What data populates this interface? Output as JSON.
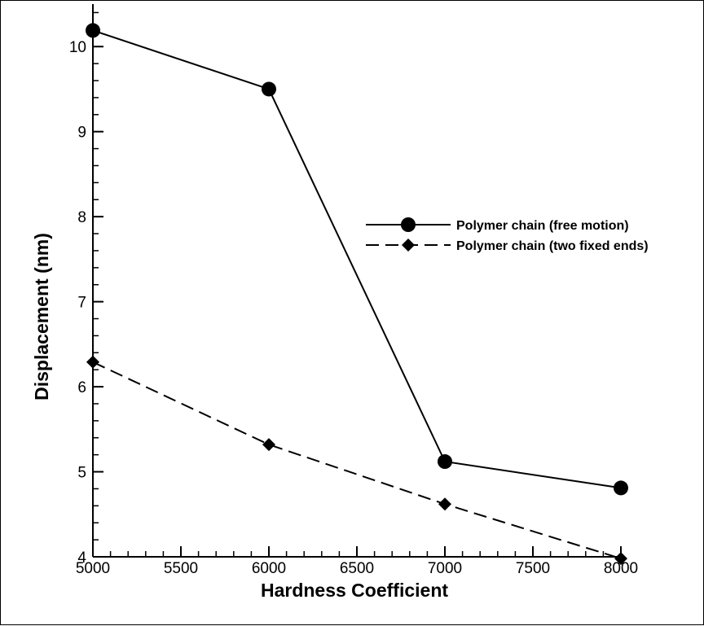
{
  "chart_data": {
    "type": "line",
    "xlabel": "Hardness Coefficient",
    "ylabel": "Displacement (nm)",
    "xlim": [
      5000,
      8000
    ],
    "ylim": [
      4,
      10.5
    ],
    "xticks": [
      5000,
      5500,
      6000,
      6500,
      7000,
      7500,
      8000
    ],
    "yticks": [
      4,
      5,
      6,
      7,
      8,
      9,
      10
    ],
    "legend_position": "right-middle",
    "series": [
      {
        "name": "Polymer chain (free motion)",
        "x": [
          5000,
          6000,
          7000,
          8000
        ],
        "y": [
          10.19,
          9.5,
          5.12,
          4.81
        ],
        "line_style": "solid",
        "marker": "circle",
        "color": "#000000"
      },
      {
        "name": "Polymer chain (two fixed ends)",
        "x": [
          5000,
          6000,
          7000,
          8000
        ],
        "y": [
          6.29,
          5.32,
          4.62,
          3.98
        ],
        "line_style": "dashed",
        "marker": "diamond",
        "color": "#000000"
      }
    ]
  }
}
